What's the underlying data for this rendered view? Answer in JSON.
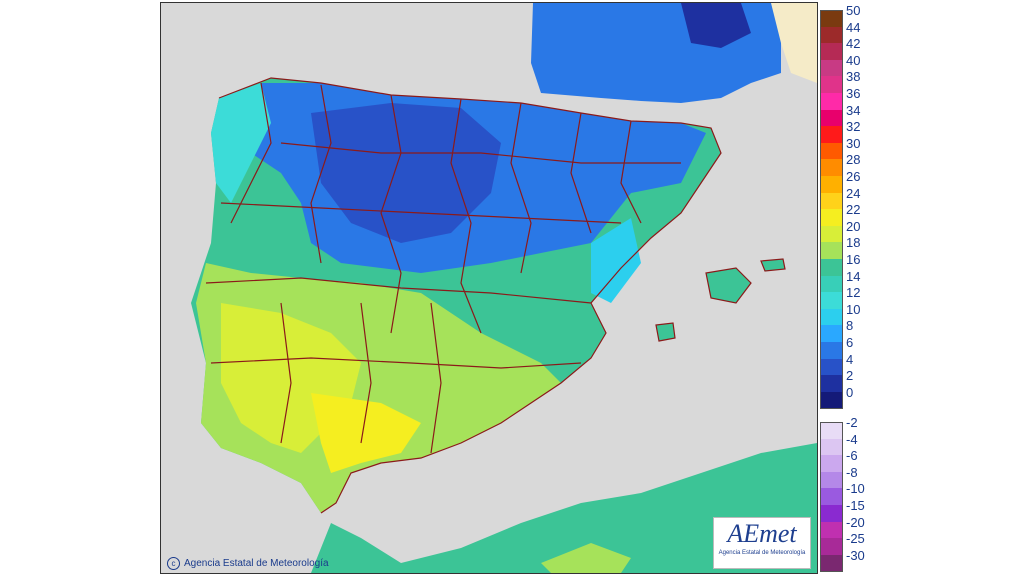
{
  "copyright": "Agencia Estatal de Meteorología",
  "logo": {
    "text": "AEmet",
    "subtitle": "Agencia Estatal de Meteorología"
  },
  "legend_positive": {
    "labels": [
      "50",
      "44",
      "42",
      "40",
      "38",
      "36",
      "34",
      "32",
      "30",
      "28",
      "26",
      "24",
      "22",
      "20",
      "18",
      "16",
      "14",
      "12",
      "10",
      "8",
      "6",
      "4",
      "2",
      "0"
    ],
    "colors": [
      "#7a3a10",
      "#9c2a2a",
      "#b52a55",
      "#c83a84",
      "#e0338a",
      "#ff2aa8",
      "#e8006c",
      "#ff1a1a",
      "#ff5a00",
      "#ff8c00",
      "#ffb000",
      "#ffd21a",
      "#f5ee20",
      "#d8ee38",
      "#a6e25a",
      "#3cc496",
      "#38cfb8",
      "#3cdcd8",
      "#2ccfee",
      "#2aa8ff",
      "#2a78e6",
      "#2852c8",
      "#1e30a0",
      "#141a78"
    ]
  },
  "legend_negative": {
    "labels": [
      "-2",
      "-4",
      "-6",
      "-8",
      "-10",
      "-15",
      "-20",
      "-25",
      "-30"
    ],
    "colors": [
      "#e8dcf6",
      "#dcc6f2",
      "#cba8ee",
      "#b488e8",
      "#9a5ae0",
      "#8a2ad0",
      "#c030b0",
      "#a82a98",
      "#7a2870"
    ]
  },
  "map_colors": {
    "sea": "#d9d9d9",
    "borders": "#8b1a1a"
  }
}
